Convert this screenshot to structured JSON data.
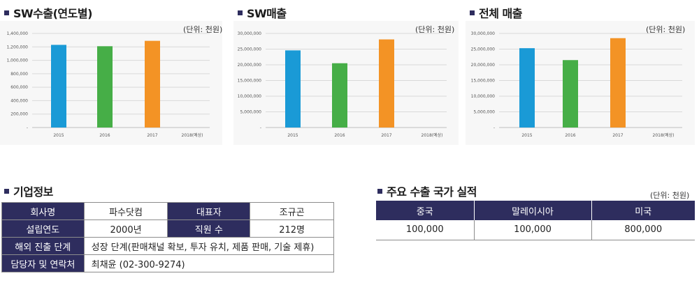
{
  "charts": {
    "sw_export": {
      "title": "SW수출(연도별)",
      "unit": "(단위: 천원)"
    },
    "sw_sales": {
      "title": "SW매출",
      "unit": "(단위: 천원)"
    },
    "total_sales": {
      "title": "전체 매출",
      "unit": "(단위: 천원)"
    }
  },
  "chart_data": [
    {
      "type": "bar",
      "title": "SW수출(연도별)",
      "categories": [
        "2015",
        "2016",
        "2017",
        "2018(예상)"
      ],
      "values": [
        1230000,
        1210000,
        1290000,
        null
      ],
      "colors": [
        "#1a9ad6",
        "#46ae47",
        "#f39325"
      ],
      "ylim": [
        0,
        1400000
      ],
      "yticks": [
        "1,400,000",
        "1,200,000",
        "1,000,000",
        "800,000",
        "600,000",
        "400,000",
        "200,000",
        "-"
      ],
      "grid": true
    },
    {
      "type": "bar",
      "title": "SW매출",
      "categories": [
        "2015",
        "2016",
        "2017",
        "2018(예상)"
      ],
      "values": [
        24600000,
        20500000,
        28100000,
        null
      ],
      "colors": [
        "#1a9ad6",
        "#46ae47",
        "#f39325"
      ],
      "ylim": [
        0,
        30000000
      ],
      "yticks": [
        "30,000,000",
        "25,000,000",
        "20,000,000",
        "15,000,000",
        "10,000,000",
        "5,000,000",
        "-"
      ],
      "grid": true
    },
    {
      "type": "bar",
      "title": "전체 매출",
      "categories": [
        "2015",
        "2016",
        "2017",
        "2018(예상)"
      ],
      "values": [
        25300000,
        21500000,
        28500000,
        null
      ],
      "colors": [
        "#1a9ad6",
        "#46ae47",
        "#f39325"
      ],
      "ylim": [
        0,
        30000000
      ],
      "yticks": [
        "30,000,000",
        "25,000,000",
        "20,000,000",
        "15,000,000",
        "10,000,000",
        "5,000,000",
        "-"
      ],
      "grid": true
    }
  ],
  "company": {
    "title": "기업정보",
    "name_label": "회사명",
    "name_value": "파수닷컴",
    "ceo_label": "대표자",
    "ceo_value": "조규곤",
    "founded_label": "설립연도",
    "founded_value": "2000년",
    "staff_label": "직원 수",
    "staff_value": "212명",
    "stage_label": "해외 진출 단계",
    "stage_value": "성장 단계(판매채널 확보, 투자 유치, 제품 판매, 기술 제휴)",
    "contact_label": "담당자 및 연락처",
    "contact_value": "최채윤 (02-300-9274)"
  },
  "export_countries": {
    "title": "주요 수출 국가 실적",
    "unit": "(단위: 천원)",
    "headers": [
      "중국",
      "말레이시아",
      "미국"
    ],
    "values": [
      "100,000",
      "100,000",
      "800,000"
    ]
  },
  "colors": {
    "header_navy": "#2e2d5e",
    "bar_blue": "#1a9ad6",
    "bar_green": "#46ae47",
    "bar_orange": "#f39325"
  }
}
